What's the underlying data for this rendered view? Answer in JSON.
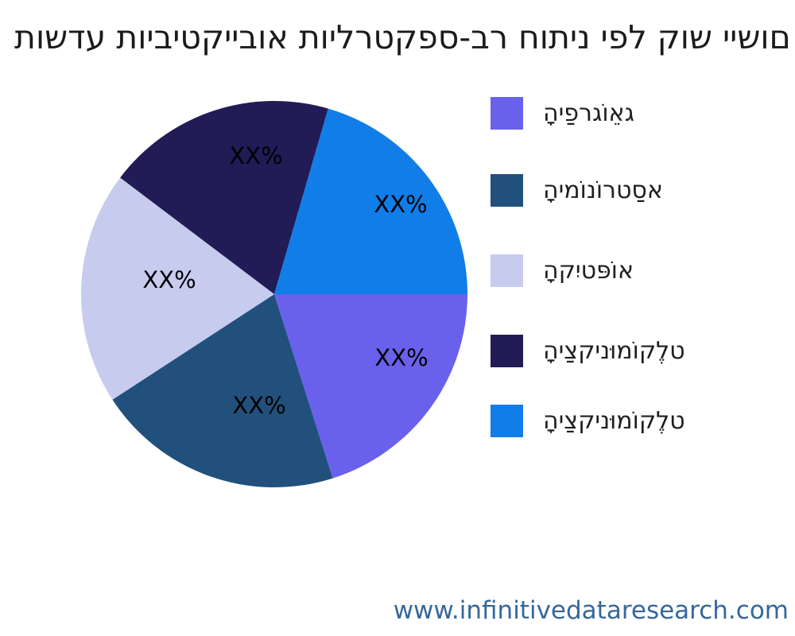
{
  "title": {
    "text": "תושדע תויביטקייבוא תוילרטקפס-בר חותינ יפל קוש יישום",
    "color": "#1b1b1b"
  },
  "footer": {
    "text": "www.infinitivedataresearch.com",
    "color": "#35689b"
  },
  "chart_data": {
    "type": "pie",
    "title": "תושדע תויביטקייבוא תוילרטקפס-בר חותינ יפל קוש יישום",
    "categories": [
      "הָיפַרגוֹאֵג",
      "הָימוֹנוֹרטסַא",
      "הָקיִטפּוֹא",
      "הָיצַקינוּמוֹקלֶט",
      "הָיצַקינוּמוֹקלֶט"
    ],
    "values": [
      20.1,
      20.7,
      19.5,
      19.2,
      20.5
    ],
    "slice_value_labels": [
      "XX%",
      "XX%",
      "XX%",
      "XX%",
      "XX%"
    ],
    "colors": [
      "#6961ec",
      "#22507c",
      "#c7cbee",
      "#211b56",
      "#117de8"
    ],
    "value_label_color": "#000000",
    "start_angle_deg": 0,
    "direction": "clockwise",
    "legend_position": "right",
    "grid": false
  }
}
